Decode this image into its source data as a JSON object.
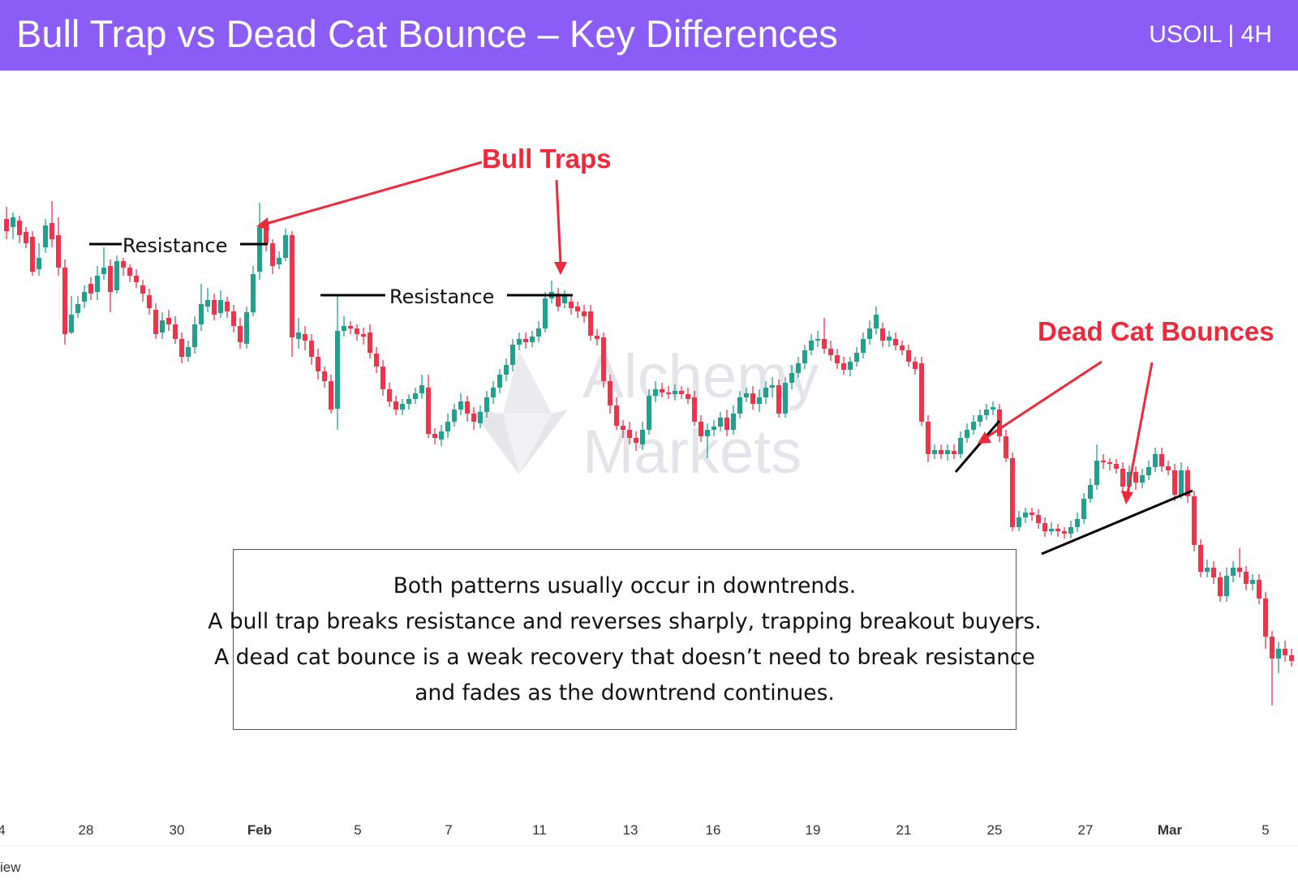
{
  "header": {
    "title": "Bull Trap vs Dead Cat Bounce – Key Differences",
    "ticker": "USOIL | 4H"
  },
  "colors": {
    "header_bg": "#8b5cf6",
    "bull_candle": "#22a08e",
    "bear_candle": "#f0334a",
    "annotation": "#f0283c",
    "resistance_line": "#000000",
    "watermark": "#e0dfe6"
  },
  "watermark": {
    "line1": "Alchemy",
    "line2": "Markets"
  },
  "annotations": {
    "bull_traps": "Bull Traps",
    "dead_cat_bounces": "Dead Cat Bounces",
    "resistance_1": "Resistance",
    "resistance_2": "Resistance"
  },
  "note": {
    "lines": [
      "Both patterns usually occur in downtrends.",
      "A bull trap breaks resistance and reverses sharply, trapping breakout buyers.",
      "A dead cat bounce is a weak recovery that doesn’t need to break resistance",
      "and fades as the downtrend continues."
    ]
  },
  "footer": {
    "tv_fragment": "iew"
  },
  "chart_data": {
    "type": "candlestick",
    "title": "Bull Trap vs Dead Cat Bounce – Key Differences",
    "instrument": "USOIL",
    "timeframe": "4H",
    "x_tick_labels": [
      "4",
      "28",
      "30",
      "Feb",
      "5",
      "7",
      "11",
      "13",
      "16",
      "19",
      "21",
      "25",
      "27",
      "Mar",
      "5"
    ],
    "anchor_points": [
      {
        "label": "left edge",
        "price": 0.88,
        "color": "bull"
      },
      {
        "label": "Resistance 1",
        "price": 0.79,
        "color": "flat"
      },
      {
        "label": "Bull trap 1",
        "price": 0.93,
        "color": "bull"
      },
      {
        "label": "Resistance 2",
        "price": 0.67,
        "color": "flat"
      },
      {
        "label": "Bull trap 2",
        "price": 0.68,
        "color": "bull"
      },
      {
        "label": "Dead cat bounce 1 low",
        "price": 0.22,
        "color": "bear"
      },
      {
        "label": "Dead cat bounce 2 low",
        "price": 0.02,
        "color": "bear"
      }
    ]
  }
}
